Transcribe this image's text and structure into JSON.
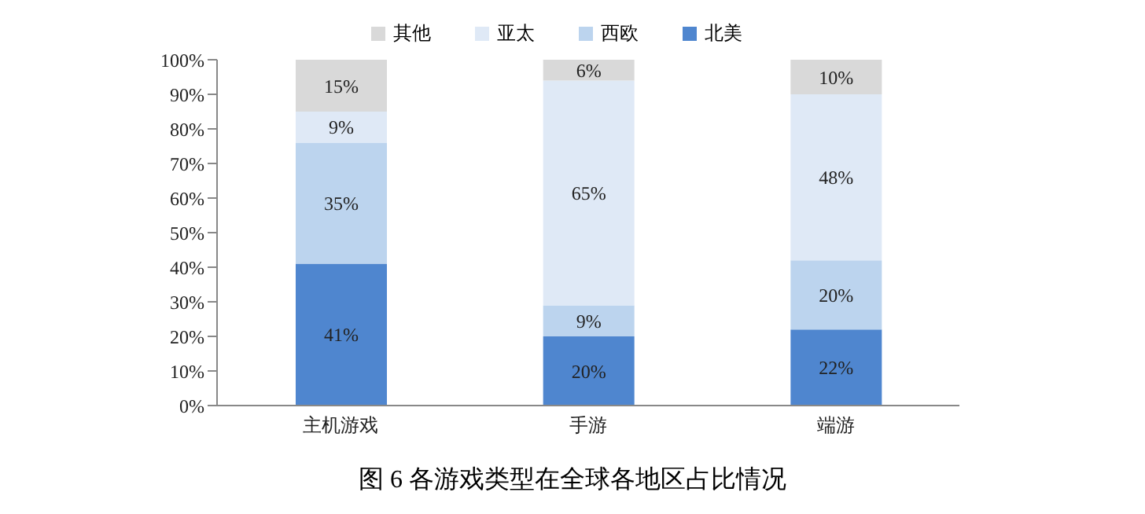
{
  "chart_data": {
    "type": "bar",
    "stacked": true,
    "title": "图 6 各游戏类型在全球各地区占比情况",
    "categories": [
      "主机游戏",
      "手游",
      "端游"
    ],
    "series": [
      {
        "name": "北美",
        "color": "#4f86cf",
        "values": [
          41,
          20,
          22
        ],
        "value_labels": [
          "41%",
          "20%",
          "22%"
        ]
      },
      {
        "name": "西欧",
        "color": "#bcd4ee",
        "values": [
          35,
          9,
          20
        ],
        "value_labels": [
          "35%",
          "9%",
          "20%"
        ]
      },
      {
        "name": "亚太",
        "color": "#dfe9f6",
        "values": [
          9,
          65,
          48
        ],
        "value_labels": [
          "9%",
          "65%",
          "48%"
        ]
      },
      {
        "name": "其他",
        "color": "#d9d9d9",
        "values": [
          15,
          6,
          10
        ],
        "value_labels": [
          "15%",
          "6%",
          "10%"
        ]
      }
    ],
    "ylim": [
      0,
      100
    ],
    "yticks": [
      {
        "value": 0,
        "label": "0%"
      },
      {
        "value": 10,
        "label": "10%"
      },
      {
        "value": 20,
        "label": "20%"
      },
      {
        "value": 30,
        "label": "30%"
      },
      {
        "value": 40,
        "label": "40%"
      },
      {
        "value": 50,
        "label": "50%"
      },
      {
        "value": 60,
        "label": "60%"
      },
      {
        "value": 70,
        "label": "70%"
      },
      {
        "value": 80,
        "label": "80%"
      },
      {
        "value": 90,
        "label": "90%"
      },
      {
        "value": 100,
        "label": "100%"
      }
    ],
    "legend": "top",
    "grid": false
  }
}
